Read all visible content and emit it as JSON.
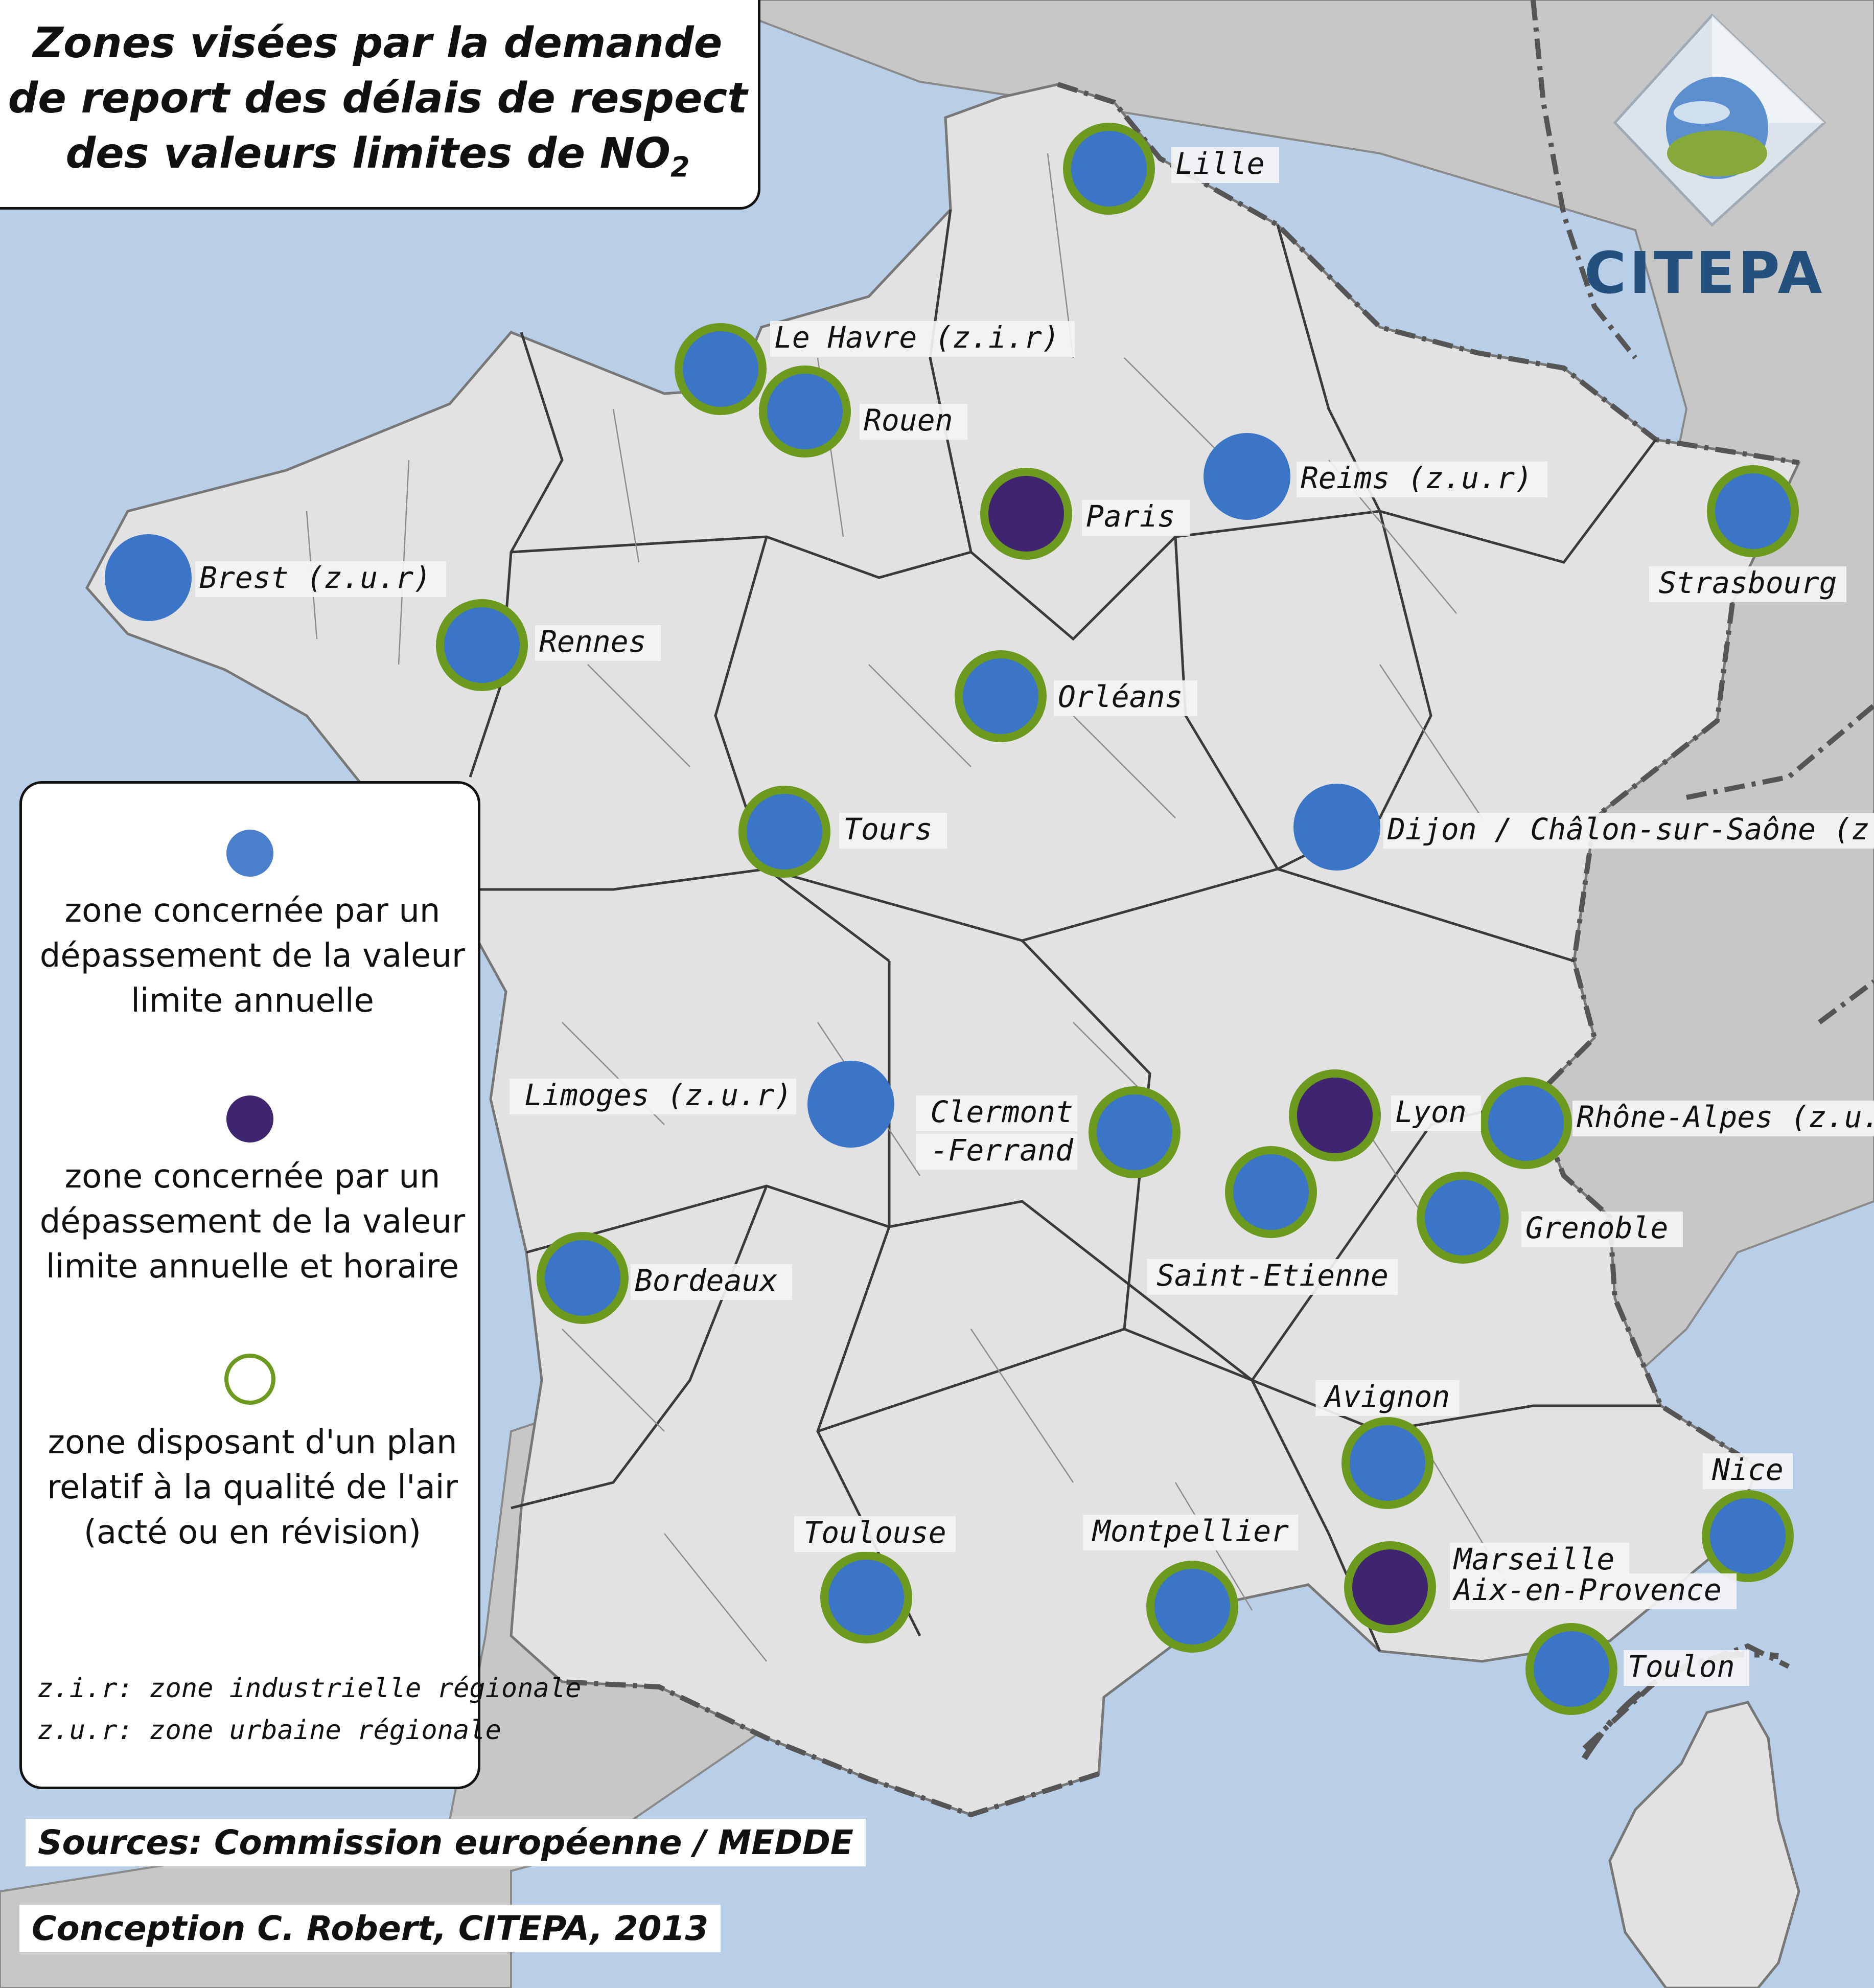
{
  "title": {
    "line1": "Zones visées par la demande",
    "line2": "de report des délais de respect",
    "line3": "des valeurs limites de NO",
    "subscript": "2"
  },
  "logo": {
    "text": "CITEPA"
  },
  "legend": {
    "item1": "zone concernée par un dépassement de la valeur limite annuelle",
    "item2": "zone concernée par un dépassement de la valeur limite annuelle et horaire",
    "item3": "zone disposant d'un plan relatif à la qualité de l'air (acté ou en révision)",
    "zir": "z.i.r: zone industrielle régionale",
    "zur": "z.u.r: zone urbaine régionale"
  },
  "sources": "Sources: Commission européenne / MEDDE",
  "credit": "Conception C. Robert, CITEPA, 2013",
  "colors": {
    "sea": "#b9cfe8",
    "france": "#e2e2e2",
    "neighbours": "#c7c7c7",
    "annual": "#3b75c8",
    "annual_hourly": "#3f2470",
    "plan_ring": "#6b9a1e"
  },
  "zones": [
    {
      "name": "Lille",
      "type": "annual",
      "plan": true
    },
    {
      "name": "Le Havre (z.i.r)",
      "type": "annual",
      "plan": true
    },
    {
      "name": "Rouen",
      "type": "annual",
      "plan": true
    },
    {
      "name": "Paris",
      "type": "annual_hourly",
      "plan": true
    },
    {
      "name": "Reims (z.u.r)",
      "type": "annual",
      "plan": false
    },
    {
      "name": "Strasbourg",
      "type": "annual",
      "plan": true
    },
    {
      "name": "Brest (z.u.r)",
      "type": "annual",
      "plan": false
    },
    {
      "name": "Rennes",
      "type": "annual",
      "plan": true
    },
    {
      "name": "Orléans",
      "type": "annual",
      "plan": true
    },
    {
      "name": "Tours",
      "type": "annual",
      "plan": true
    },
    {
      "name": "Dijon / Châlon-sur-Saône (z.u.r)",
      "type": "annual",
      "plan": false
    },
    {
      "name": "Limoges (z.u.r)",
      "type": "annual",
      "plan": false
    },
    {
      "name": "Clermont -Ferrand",
      "type": "annual",
      "plan": true
    },
    {
      "name": "Lyon",
      "type": "annual_hourly",
      "plan": true
    },
    {
      "name": "Rhône-Alpes (z.u.r)",
      "type": "annual",
      "plan": true
    },
    {
      "name": "Saint-Etienne",
      "type": "annual",
      "plan": true
    },
    {
      "name": "Grenoble",
      "type": "annual",
      "plan": true
    },
    {
      "name": "Bordeaux",
      "type": "annual",
      "plan": true
    },
    {
      "name": "Avignon",
      "type": "annual",
      "plan": true
    },
    {
      "name": "Nice",
      "type": "annual",
      "plan": true
    },
    {
      "name": "Toulouse",
      "type": "annual",
      "plan": true
    },
    {
      "name": "Montpellier",
      "type": "annual",
      "plan": true
    },
    {
      "name": "Marseille Aix-en-Provence",
      "type": "annual_hourly",
      "plan": true
    },
    {
      "name": "Toulon",
      "type": "annual",
      "plan": true
    }
  ]
}
